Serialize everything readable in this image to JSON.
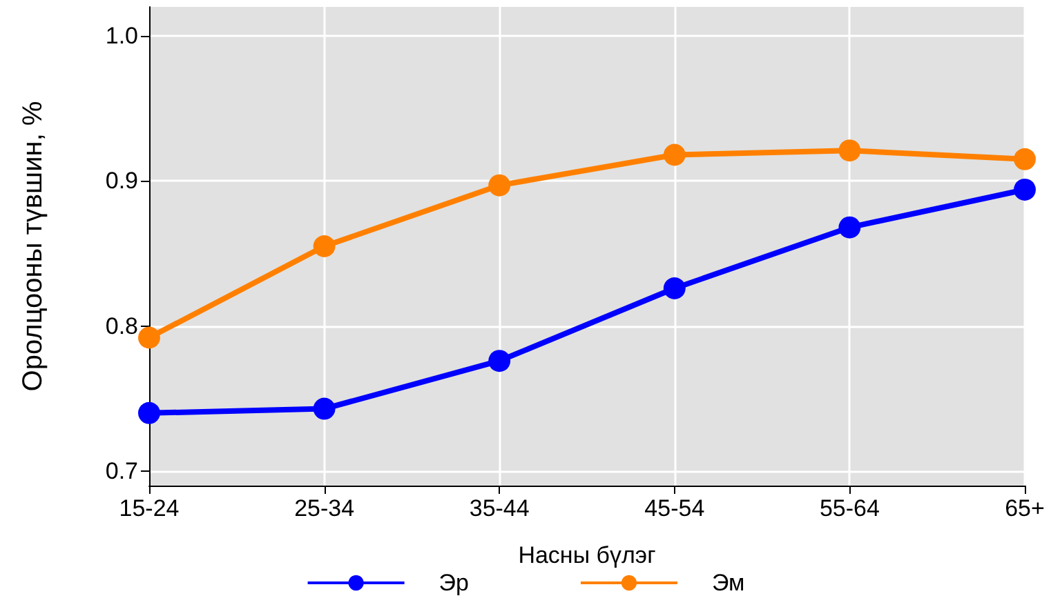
{
  "chart_data": {
    "type": "line",
    "xlabel": "Насны бүлэг",
    "ylabel": "Оролцооны түвшин, %",
    "categories": [
      "15-24",
      "25-34",
      "35-44",
      "45-54",
      "55-64",
      "65+"
    ],
    "series": [
      {
        "name": "Эр",
        "color": "#0000ff",
        "values": [
          0.74,
          0.743,
          0.776,
          0.826,
          0.868,
          0.894
        ]
      },
      {
        "name": "Эм",
        "color": "#ff8000",
        "values": [
          0.792,
          0.855,
          0.897,
          0.918,
          0.921,
          0.915
        ]
      }
    ],
    "ylim": [
      0.69,
      1.02
    ],
    "yticks": [
      {
        "value": 0.7,
        "label": "0.7"
      },
      {
        "value": 0.8,
        "label": "0.8"
      },
      {
        "value": 0.9,
        "label": "0.9"
      },
      {
        "value": 1.0,
        "label": "1.0"
      }
    ],
    "grid": true,
    "legend": "bottom",
    "marker": "circle",
    "line_style": "solid"
  }
}
